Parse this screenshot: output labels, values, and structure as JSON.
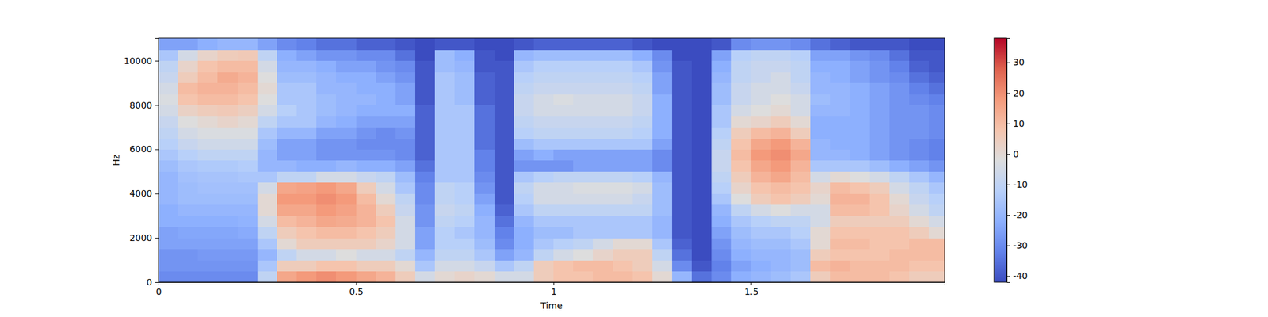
{
  "chart_data": {
    "type": "heatmap",
    "xlabel": "Time",
    "ylabel": "Hz",
    "xlim": [
      0,
      1.99
    ],
    "xticks": [
      0,
      0.5,
      1,
      1.5
    ],
    "ylim": [
      0,
      11025
    ],
    "yticks": [
      0,
      2000,
      4000,
      6000,
      8000,
      10000
    ],
    "zlim": [
      -42,
      38
    ],
    "zticks": [
      -40,
      -30,
      -20,
      -10,
      0,
      10,
      20,
      30
    ],
    "time_edges": [
      0,
      0.05,
      0.1,
      0.15,
      0.2,
      0.25,
      0.3,
      0.35,
      0.4,
      0.45,
      0.5,
      0.55,
      0.6,
      0.65,
      0.7,
      0.75,
      0.8,
      0.85,
      0.9,
      0.95,
      1.0,
      1.05,
      1.1,
      1.15,
      1.2,
      1.25,
      1.3,
      1.35,
      1.4,
      1.45,
      1.5,
      1.55,
      1.6,
      1.65,
      1.7,
      1.75,
      1.8,
      1.85,
      1.9,
      1.95,
      2.0
    ],
    "freq_edges": [
      0,
      500,
      1000,
      1500,
      2000,
      2500,
      3000,
      3500,
      4000,
      4500,
      5000,
      5500,
      6000,
      6500,
      7000,
      7500,
      8000,
      8500,
      9000,
      9500,
      10000,
      10500,
      11025
    ],
    "cells": [
      [
        -30,
        -28,
        -28,
        -25,
        -25,
        -22,
        -22,
        -20,
        -20,
        -20,
        -18,
        -15,
        -12,
        -10,
        -8,
        -5,
        -3,
        -5,
        -8,
        -10,
        -15,
        -25
      ],
      [
        -30,
        -28,
        -28,
        -25,
        -24,
        -22,
        -20,
        -18,
        -18,
        -17,
        -15,
        -12,
        -8,
        -5,
        -2,
        3,
        8,
        10,
        5,
        2,
        -5,
        -25
      ],
      [
        -30,
        -28,
        -27,
        -25,
        -24,
        -22,
        -20,
        -18,
        -17,
        -16,
        -14,
        -10,
        -6,
        -3,
        0,
        5,
        10,
        12,
        10,
        8,
        2,
        -22
      ],
      [
        -30,
        -28,
        -27,
        -25,
        -24,
        -22,
        -20,
        -18,
        -17,
        -16,
        -14,
        -10,
        -6,
        -3,
        2,
        6,
        10,
        12,
        14,
        10,
        5,
        -20
      ],
      [
        -30,
        -28,
        -27,
        -25,
        -23,
        -21,
        -20,
        -18,
        -17,
        -15,
        -13,
        -10,
        -6,
        -3,
        0,
        4,
        8,
        10,
        12,
        10,
        6,
        -20
      ],
      [
        -10,
        -15,
        -20,
        -15,
        -10,
        -5,
        0,
        0,
        -5,
        -15,
        -20,
        -20,
        -18,
        -15,
        -10,
        -5,
        -2,
        0,
        -2,
        -5,
        -10,
        -25
      ],
      [
        15,
        5,
        -10,
        0,
        5,
        10,
        15,
        18,
        15,
        -10,
        -20,
        -25,
        -25,
        -20,
        -15,
        -12,
        -15,
        -15,
        -18,
        -20,
        -22,
        -30
      ],
      [
        18,
        5,
        -5,
        5,
        8,
        12,
        15,
        18,
        16,
        -10,
        -22,
        -25,
        -25,
        -20,
        -15,
        -15,
        -15,
        -15,
        -18,
        -20,
        -25,
        -32
      ],
      [
        20,
        8,
        -5,
        5,
        10,
        15,
        18,
        20,
        18,
        -5,
        -22,
        -28,
        -28,
        -25,
        -20,
        -18,
        -18,
        -20,
        -20,
        -22,
        -28,
        -35
      ],
      [
        18,
        8,
        -2,
        5,
        10,
        14,
        16,
        18,
        15,
        -5,
        -20,
        -28,
        -28,
        -25,
        -22,
        -20,
        -20,
        -20,
        -22,
        -25,
        -28,
        -35
      ],
      [
        15,
        5,
        -5,
        5,
        8,
        12,
        12,
        10,
        5,
        -8,
        -22,
        -28,
        -30,
        -28,
        -25,
        -22,
        -20,
        -22,
        -22,
        -25,
        -30,
        -38
      ],
      [
        12,
        5,
        -5,
        2,
        5,
        8,
        5,
        0,
        -5,
        -10,
        -22,
        -28,
        -30,
        -30,
        -25,
        -22,
        -22,
        -22,
        -25,
        -28,
        -30,
        -38
      ],
      [
        5,
        0,
        -10,
        -5,
        -5,
        -5,
        -8,
        -10,
        -15,
        -18,
        -25,
        -30,
        -30,
        -28,
        -25,
        -22,
        -25,
        -25,
        -28,
        -30,
        -35,
        -40
      ],
      [
        -5,
        -15,
        -20,
        -25,
        -25,
        -28,
        -28,
        -30,
        -30,
        -32,
        -35,
        -38,
        -38,
        -38,
        -38,
        -38,
        -40,
        -40,
        -40,
        -40,
        -42,
        -42
      ],
      [
        0,
        -5,
        -10,
        -12,
        -12,
        -10,
        -8,
        -10,
        -10,
        -15,
        -15,
        -15,
        -15,
        -15,
        -15,
        -15,
        -15,
        -15,
        -15,
        -18,
        -18,
        -40
      ],
      [
        2,
        -5,
        -10,
        -12,
        -15,
        -12,
        -10,
        -12,
        -12,
        -15,
        -15,
        -15,
        -15,
        -15,
        -15,
        -15,
        -18,
        -18,
        -18,
        -20,
        -22,
        -40
      ],
      [
        0,
        -8,
        -15,
        -18,
        -20,
        -20,
        -22,
        -25,
        -28,
        -30,
        -32,
        -32,
        -35,
        -35,
        -35,
        -35,
        -38,
        -38,
        -38,
        -40,
        -40,
        -42
      ],
      [
        -5,
        -15,
        -25,
        -30,
        -32,
        -35,
        -38,
        -40,
        -40,
        -40,
        -40,
        -40,
        -40,
        -40,
        -40,
        -40,
        -40,
        -40,
        -40,
        -40,
        -42,
        -42
      ],
      [
        -5,
        -10,
        -20,
        -22,
        -22,
        -20,
        -15,
        -12,
        -10,
        -15,
        -28,
        -25,
        -18,
        -12,
        -10,
        -8,
        -8,
        -10,
        -12,
        -15,
        -20,
        -40
      ],
      [
        5,
        5,
        -10,
        -15,
        -18,
        -15,
        -10,
        -5,
        -5,
        -12,
        -28,
        -22,
        -15,
        -10,
        -8,
        -5,
        -5,
        -8,
        -10,
        -12,
        -18,
        -38
      ],
      [
        8,
        8,
        -5,
        -12,
        -18,
        -15,
        -10,
        -5,
        -5,
        -10,
        -28,
        -25,
        -15,
        -10,
        -8,
        -5,
        -3,
        -8,
        -10,
        -12,
        -18,
        -38
      ],
      [
        8,
        10,
        -2,
        -10,
        -15,
        -15,
        -10,
        -5,
        -3,
        -10,
        -25,
        -25,
        -15,
        -10,
        -8,
        -5,
        -5,
        -8,
        -10,
        -12,
        -18,
        -38
      ],
      [
        10,
        10,
        2,
        -5,
        -15,
        -15,
        -10,
        -5,
        -3,
        -10,
        -25,
        -25,
        -15,
        -10,
        -8,
        -5,
        -5,
        -8,
        -10,
        -12,
        -18,
        -38
      ],
      [
        10,
        8,
        5,
        0,
        -15,
        -15,
        -10,
        -5,
        -3,
        -10,
        -25,
        -25,
        -15,
        -10,
        -8,
        -5,
        -5,
        -8,
        -10,
        -12,
        -18,
        -38
      ],
      [
        8,
        5,
        5,
        0,
        -15,
        -15,
        -10,
        -8,
        -5,
        -12,
        -25,
        -25,
        -15,
        -12,
        -10,
        -8,
        -8,
        -10,
        -12,
        -15,
        -22,
        -40
      ],
      [
        0,
        -5,
        -10,
        -15,
        -20,
        -20,
        -18,
        -18,
        -18,
        -20,
        -30,
        -30,
        -25,
        -22,
        -22,
        -22,
        -22,
        -25,
        -25,
        -28,
        -30,
        -42
      ],
      [
        -20,
        -30,
        -35,
        -38,
        -40,
        -40,
        -40,
        -40,
        -40,
        -40,
        -40,
        -40,
        -40,
        -40,
        -40,
        -40,
        -40,
        -40,
        -40,
        -40,
        -42,
        -42
      ],
      [
        -35,
        -40,
        -42,
        -42,
        -42,
        -42,
        -42,
        -42,
        -42,
        -42,
        -42,
        -42,
        -42,
        -42,
        -42,
        -42,
        -42,
        -42,
        -42,
        -42,
        -42,
        -42
      ],
      [
        -30,
        -32,
        -30,
        -28,
        -25,
        -22,
        -20,
        -15,
        -12,
        -10,
        -8,
        -8,
        -10,
        -12,
        -15,
        -15,
        -18,
        -18,
        -20,
        -22,
        -25,
        -40
      ],
      [
        -22,
        -25,
        -22,
        -20,
        -18,
        -15,
        -10,
        -2,
        2,
        5,
        8,
        10,
        8,
        5,
        0,
        -5,
        -8,
        -8,
        -10,
        -10,
        -12,
        -30
      ],
      [
        -20,
        -22,
        -20,
        -18,
        -15,
        -12,
        -5,
        5,
        8,
        12,
        15,
        18,
        15,
        10,
        2,
        -2,
        -5,
        -5,
        -8,
        -8,
        -10,
        -28
      ],
      [
        -18,
        -20,
        -20,
        -18,
        -15,
        -10,
        -2,
        8,
        10,
        15,
        18,
        20,
        18,
        12,
        5,
        0,
        -2,
        -5,
        -5,
        -8,
        -10,
        -28
      ],
      [
        -15,
        -18,
        -18,
        -15,
        -12,
        -10,
        -5,
        5,
        8,
        10,
        12,
        15,
        12,
        5,
        0,
        -5,
        -5,
        -8,
        -10,
        -10,
        -12,
        -30
      ],
      [
        5,
        10,
        5,
        0,
        0,
        -5,
        -5,
        0,
        2,
        -5,
        -15,
        -20,
        -20,
        -22,
        -22,
        -20,
        -18,
        -20,
        -20,
        -22,
        -25,
        -35
      ],
      [
        10,
        12,
        8,
        10,
        8,
        5,
        10,
        12,
        10,
        0,
        -15,
        -20,
        -22,
        -22,
        -22,
        -20,
        -20,
        -20,
        -22,
        -22,
        -25,
        -38
      ],
      [
        10,
        10,
        8,
        10,
        8,
        5,
        10,
        12,
        8,
        -2,
        -15,
        -22,
        -22,
        -22,
        -22,
        -22,
        -22,
        -22,
        -25,
        -25,
        -28,
        -40
      ],
      [
        10,
        10,
        8,
        8,
        8,
        5,
        8,
        8,
        5,
        -5,
        -18,
        -25,
        -25,
        -25,
        -25,
        -25,
        -25,
        -25,
        -28,
        -28,
        -30,
        -40
      ],
      [
        8,
        10,
        10,
        8,
        8,
        5,
        2,
        0,
        -5,
        -10,
        -22,
        -28,
        -28,
        -28,
        -28,
        -28,
        -28,
        -28,
        -30,
        -32,
        -35,
        -40
      ],
      [
        5,
        8,
        10,
        10,
        5,
        0,
        -5,
        -8,
        -10,
        -15,
        -25,
        -30,
        -30,
        -28,
        -28,
        -28,
        -30,
        -32,
        -35,
        -38,
        -40,
        -42
      ],
      [
        5,
        8,
        10,
        10,
        0,
        -5,
        -10,
        -12,
        -15,
        -20,
        -28,
        -32,
        -32,
        -30,
        -30,
        -30,
        -32,
        -35,
        -38,
        -40,
        -40,
        -42
      ]
    ]
  }
}
